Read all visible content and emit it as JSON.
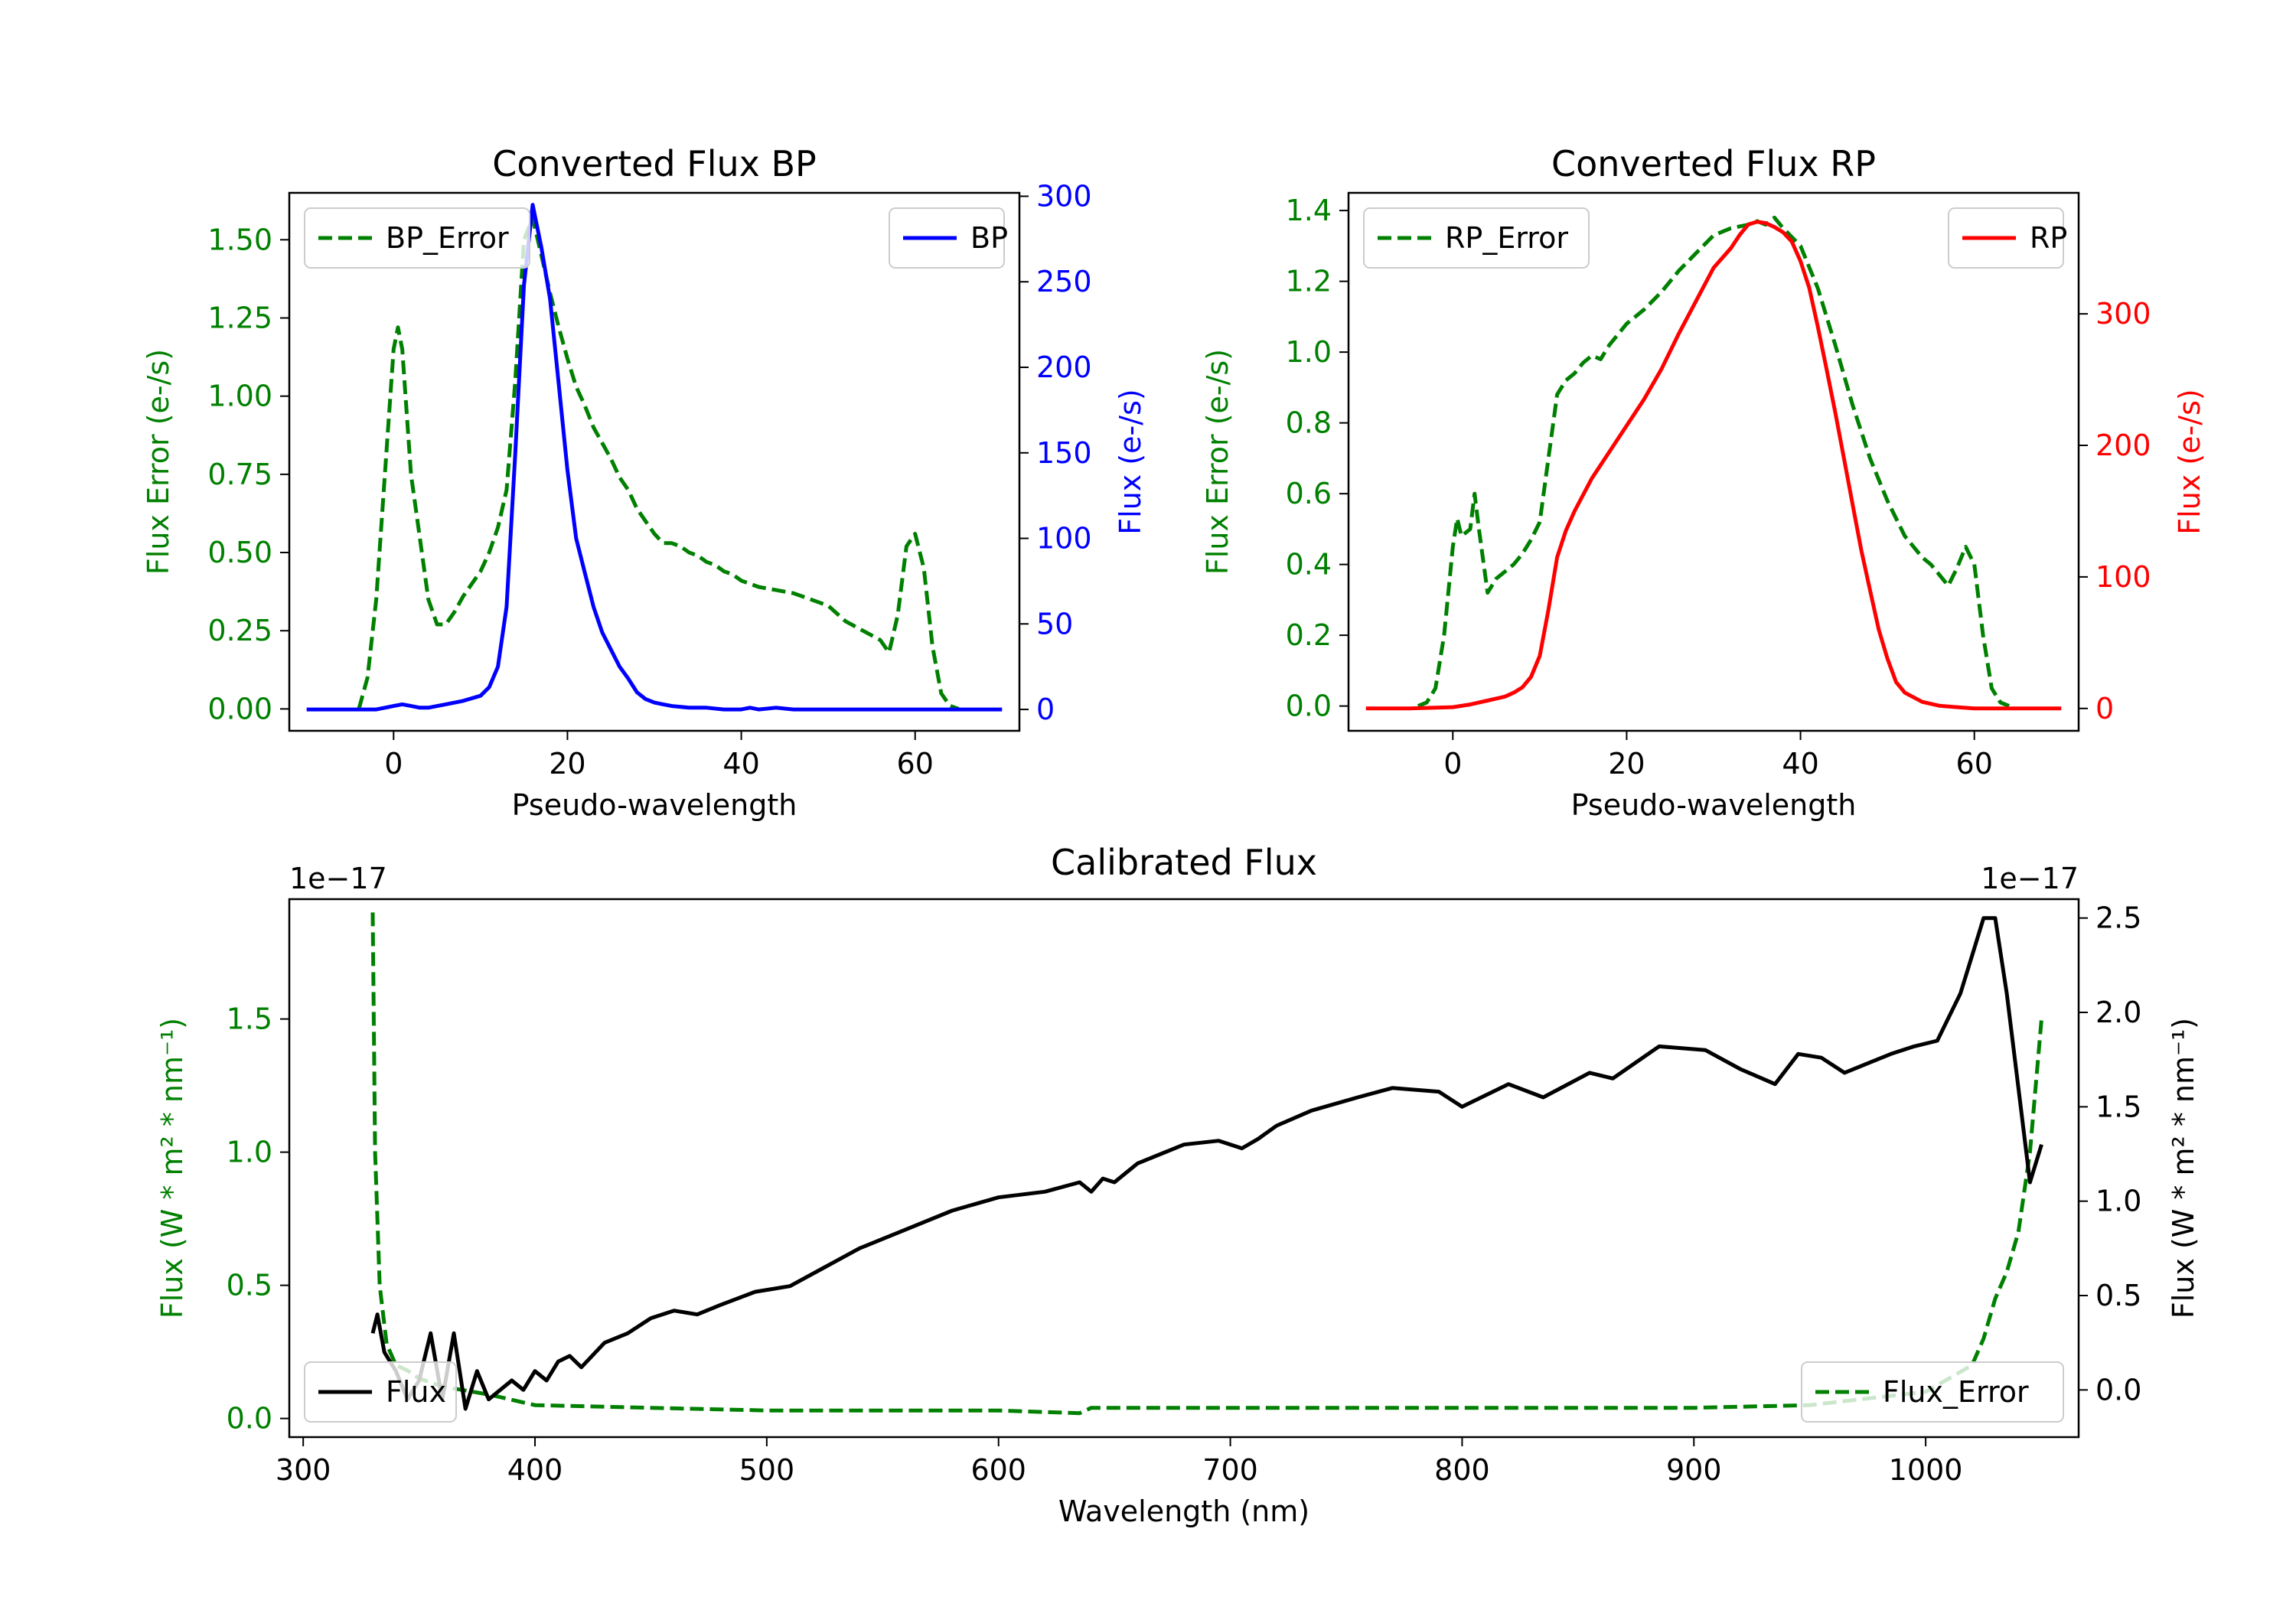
{
  "colors": {
    "green": "#008000",
    "blue": "#0000ff",
    "red": "#ff0000",
    "black": "#000000"
  },
  "chart_data": [
    {
      "type": "line",
      "title": "Converted Flux BP",
      "xlabel": "Pseudo-wavelength",
      "xlim": [
        -12,
        72
      ],
      "xticks": [
        0,
        20,
        40,
        60
      ],
      "ylabel_left": "Flux Error (e-/s)",
      "ylim_left": [
        -0.07,
        1.65
      ],
      "yticks_left": [
        0.0,
        0.25,
        0.5,
        0.75,
        1.0,
        1.25,
        1.5
      ],
      "ytick_labels_left": [
        "0.00",
        "0.25",
        "0.50",
        "0.75",
        "1.00",
        "1.25",
        "1.50"
      ],
      "ylabel_right": "Flux (e-/s)",
      "ylim_right": [
        -12.5,
        302
      ],
      "yticks_right": [
        0,
        50,
        100,
        150,
        200,
        250,
        300
      ],
      "ytick_labels_right": [
        "0",
        "50",
        "100",
        "150",
        "200",
        "250",
        "300"
      ],
      "legend_left": {
        "label": "BP_Error",
        "placement": "upper left"
      },
      "legend_right": {
        "label": "BP",
        "placement": "upper right"
      },
      "series": [
        {
          "name": "BP_Error",
          "axis": "left",
          "color": "#008000",
          "style": "dashed",
          "x": [
            -4,
            -3,
            -2,
            -1,
            0,
            0.5,
            1,
            2,
            3,
            4,
            5,
            6,
            7,
            8,
            9,
            10,
            11,
            12,
            13,
            14,
            15,
            16,
            17,
            18,
            19,
            20,
            21,
            22,
            23,
            24,
            25,
            26,
            27,
            28,
            29,
            30,
            31,
            32,
            33,
            34,
            35,
            36,
            37,
            38,
            39,
            40,
            42,
            44,
            46,
            48,
            50,
            52,
            54,
            56,
            57,
            58,
            59,
            60,
            61,
            62,
            63,
            64,
            65
          ],
          "y": [
            0.0,
            0.1,
            0.35,
            0.75,
            1.15,
            1.22,
            1.15,
            0.75,
            0.55,
            0.35,
            0.27,
            0.27,
            0.31,
            0.36,
            0.4,
            0.44,
            0.5,
            0.58,
            0.7,
            1.05,
            1.5,
            1.57,
            1.45,
            1.33,
            1.22,
            1.12,
            1.03,
            0.97,
            0.9,
            0.85,
            0.8,
            0.74,
            0.7,
            0.64,
            0.6,
            0.56,
            0.53,
            0.53,
            0.52,
            0.5,
            0.49,
            0.47,
            0.46,
            0.44,
            0.43,
            0.41,
            0.39,
            0.38,
            0.37,
            0.35,
            0.33,
            0.28,
            0.25,
            0.22,
            0.18,
            0.3,
            0.52,
            0.56,
            0.45,
            0.2,
            0.05,
            0.01,
            0.0
          ]
        },
        {
          "name": "BP",
          "axis": "right",
          "color": "#0000ff",
          "style": "solid",
          "x": [
            -10,
            -5,
            -2,
            0,
            1,
            2,
            3,
            4,
            6,
            8,
            10,
            11,
            12,
            13,
            14,
            15,
            16,
            17,
            18,
            19,
            20,
            21,
            22,
            23,
            24,
            25,
            26,
            27,
            28,
            29,
            30,
            31,
            32,
            34,
            36,
            38,
            40,
            41,
            42,
            44,
            46,
            48,
            50,
            55,
            60,
            65,
            70
          ],
          "y": [
            0,
            0,
            0,
            2,
            3,
            2,
            1,
            1,
            3,
            5,
            8,
            13,
            25,
            60,
            150,
            248,
            295,
            270,
            240,
            190,
            140,
            100,
            80,
            60,
            45,
            35,
            25,
            18,
            10,
            6,
            4,
            3,
            2,
            1,
            1,
            0,
            0,
            1,
            0,
            1,
            0,
            0,
            0,
            0,
            0,
            0,
            0
          ]
        }
      ]
    },
    {
      "type": "line",
      "title": "Converted Flux RP",
      "xlabel": "Pseudo-wavelength",
      "xlim": [
        -12,
        72
      ],
      "xticks": [
        0,
        20,
        40,
        60
      ],
      "ylabel_left": "Flux Error (e-/s)",
      "ylim_left": [
        -0.07,
        1.45
      ],
      "yticks_left": [
        0.0,
        0.2,
        0.4,
        0.6,
        0.8,
        1.0,
        1.2,
        1.4
      ],
      "ytick_labels_left": [
        "0.0",
        "0.2",
        "0.4",
        "0.6",
        "0.8",
        "1.0",
        "1.2",
        "1.4"
      ],
      "ylabel_right": "Flux (e-/s)",
      "ylim_right": [
        -17,
        392
      ],
      "yticks_right": [
        0,
        100,
        200,
        300
      ],
      "ytick_labels_right": [
        "0",
        "100",
        "200",
        "300"
      ],
      "legend_left": {
        "label": "RP_Error",
        "placement": "upper left"
      },
      "legend_right": {
        "label": "RP",
        "placement": "upper right"
      },
      "series": [
        {
          "name": "RP_Error",
          "axis": "right_dummy",
          "axisRef": "left",
          "color": "#008000",
          "style": "dashed",
          "x": [
            -4,
            -3,
            -2,
            -1,
            0,
            0.5,
            1,
            2,
            2.5,
            3,
            4,
            5,
            6,
            7,
            8,
            9,
            10,
            11,
            12,
            13,
            14,
            15,
            16,
            17,
            18,
            19,
            20,
            22,
            24,
            26,
            28,
            30,
            32,
            34,
            35,
            36,
            37,
            38,
            40,
            42,
            44,
            46,
            48,
            50,
            52,
            54,
            55,
            56,
            57,
            58,
            59,
            60,
            61,
            62,
            63,
            64
          ],
          "y": [
            0.0,
            0.01,
            0.05,
            0.2,
            0.45,
            0.53,
            0.48,
            0.5,
            0.6,
            0.5,
            0.32,
            0.36,
            0.38,
            0.4,
            0.43,
            0.47,
            0.52,
            0.7,
            0.88,
            0.92,
            0.94,
            0.97,
            0.99,
            0.98,
            1.02,
            1.05,
            1.08,
            1.12,
            1.17,
            1.23,
            1.28,
            1.33,
            1.35,
            1.36,
            1.37,
            1.36,
            1.38,
            1.35,
            1.3,
            1.18,
            1.02,
            0.85,
            0.7,
            0.58,
            0.48,
            0.42,
            0.4,
            0.37,
            0.34,
            0.39,
            0.45,
            0.4,
            0.2,
            0.05,
            0.01,
            0.0
          ]
        },
        {
          "name": "RP",
          "axis": "right",
          "color": "#ff0000",
          "style": "solid",
          "x": [
            -10,
            -5,
            0,
            2,
            4,
            6,
            7,
            8,
            9,
            10,
            11,
            12,
            13,
            14,
            16,
            18,
            20,
            22,
            24,
            26,
            28,
            30,
            32,
            33,
            34,
            35,
            36,
            37,
            38,
            39,
            40,
            41,
            42,
            43,
            44,
            45,
            46,
            47,
            48,
            49,
            50,
            51,
            52,
            54,
            56,
            58,
            60,
            65,
            70
          ],
          "y": [
            0,
            0,
            1,
            3,
            6,
            9,
            12,
            16,
            24,
            40,
            75,
            115,
            135,
            150,
            175,
            195,
            215,
            235,
            258,
            285,
            310,
            335,
            350,
            360,
            368,
            370,
            369,
            366,
            362,
            355,
            340,
            320,
            290,
            258,
            225,
            190,
            155,
            120,
            90,
            60,
            38,
            20,
            12,
            5,
            2,
            1,
            0,
            0,
            0
          ]
        }
      ]
    },
    {
      "type": "line",
      "title": "Calibrated Flux",
      "xlabel": "Wavelength (nm)",
      "xlim": [
        294,
        1066
      ],
      "xticks": [
        300,
        400,
        500,
        600,
        700,
        800,
        900,
        1000
      ],
      "ylabel_left": "Flux (W * m² * nm⁻¹)",
      "ylim_left": [
        -0.07,
        1.95
      ],
      "yticks_left": [
        0.0,
        0.5,
        1.0,
        1.5
      ],
      "ytick_labels_left": [
        "0.0",
        "0.5",
        "1.0",
        "1.5"
      ],
      "offset_left": "1e−17",
      "ylabel_right": "Flux (W * m² * nm⁻¹)",
      "ylim_right": [
        -0.25,
        2.6
      ],
      "yticks_right": [
        0.0,
        0.5,
        1.0,
        1.5,
        2.0,
        2.5
      ],
      "ytick_labels_right": [
        "0.0",
        "0.5",
        "1.0",
        "1.5",
        "2.0",
        "2.5"
      ],
      "offset_right": "1e−17",
      "legend_left": {
        "label": "Flux",
        "placement": "lower left"
      },
      "legend_right": {
        "label": "Flux_Error",
        "placement": "lower right"
      },
      "series": [
        {
          "name": "Flux_Error",
          "axis": "left",
          "color": "#008000",
          "style": "dashed",
          "x": [
            330,
            331,
            333,
            336,
            340,
            345,
            350,
            360,
            380,
            400,
            450,
            500,
            600,
            635,
            640,
            700,
            800,
            900,
            950,
            1000,
            1010,
            1020,
            1025,
            1030,
            1035,
            1040,
            1045,
            1050
          ],
          "y": [
            1.9,
            1.0,
            0.5,
            0.28,
            0.2,
            0.18,
            0.15,
            0.12,
            0.09,
            0.05,
            0.04,
            0.03,
            0.03,
            0.02,
            0.04,
            0.04,
            0.04,
            0.04,
            0.05,
            0.1,
            0.15,
            0.2,
            0.3,
            0.45,
            0.55,
            0.7,
            1.0,
            1.5
          ]
        },
        {
          "name": "Flux",
          "axis": "right",
          "color": "#000000",
          "style": "solid",
          "x": [
            330,
            332,
            335,
            340,
            345,
            350,
            355,
            360,
            365,
            370,
            375,
            380,
            385,
            390,
            395,
            400,
            405,
            410,
            415,
            420,
            430,
            440,
            450,
            460,
            470,
            480,
            495,
            510,
            525,
            540,
            560,
            580,
            600,
            620,
            635,
            640,
            645,
            650,
            660,
            680,
            695,
            705,
            712,
            720,
            735,
            755,
            770,
            790,
            800,
            820,
            835,
            855,
            865,
            885,
            905,
            920,
            935,
            945,
            955,
            965,
            975,
            985,
            995,
            1005,
            1015,
            1020,
            1025,
            1030,
            1035,
            1040,
            1045,
            1050
          ],
          "y": [
            0.3,
            0.4,
            0.2,
            0.1,
            -0.05,
            0.05,
            0.3,
            -0.05,
            0.3,
            -0.1,
            0.1,
            -0.05,
            0.0,
            0.05,
            0.0,
            0.1,
            0.05,
            0.15,
            0.18,
            0.12,
            0.25,
            0.3,
            0.38,
            0.42,
            0.4,
            0.45,
            0.52,
            0.55,
            0.65,
            0.75,
            0.85,
            0.95,
            1.02,
            1.05,
            1.1,
            1.05,
            1.12,
            1.1,
            1.2,
            1.3,
            1.32,
            1.28,
            1.33,
            1.4,
            1.48,
            1.55,
            1.6,
            1.58,
            1.5,
            1.62,
            1.55,
            1.68,
            1.65,
            1.82,
            1.8,
            1.7,
            1.62,
            1.78,
            1.76,
            1.68,
            1.73,
            1.78,
            1.82,
            1.85,
            2.1,
            2.3,
            2.5,
            2.5,
            2.1,
            1.6,
            1.1,
            1.3
          ]
        }
      ]
    }
  ]
}
